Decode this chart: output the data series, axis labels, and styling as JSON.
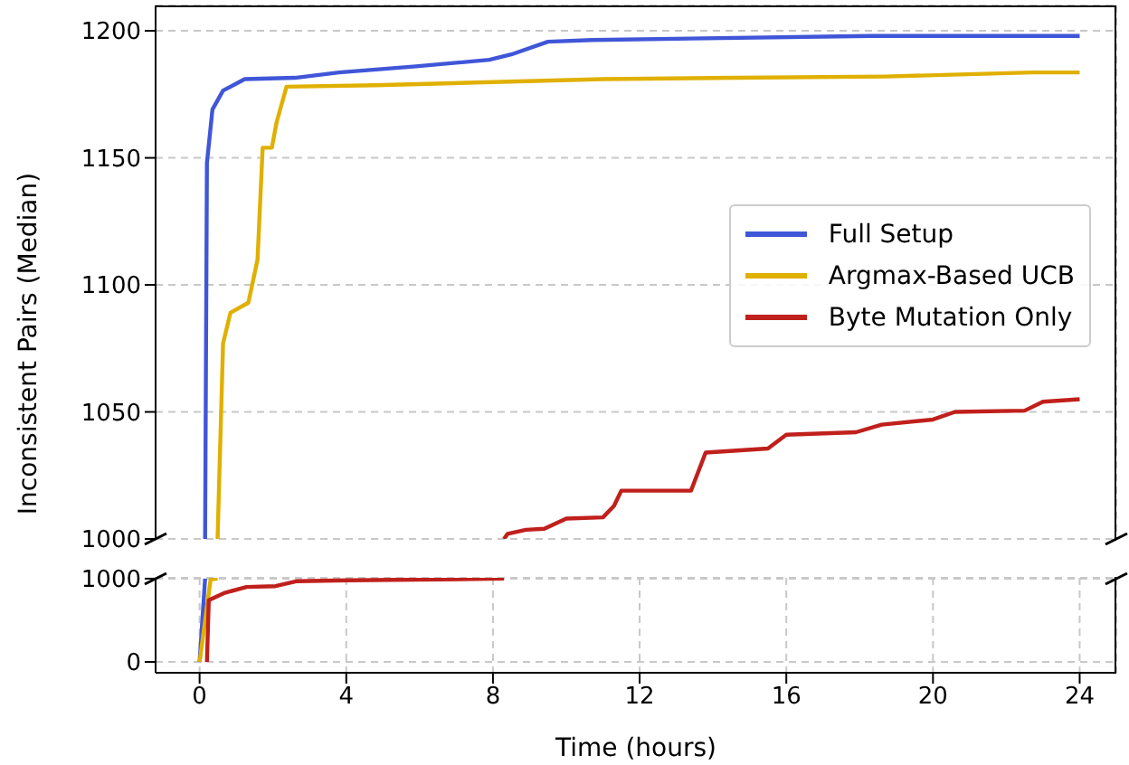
{
  "chart_data": [
    {
      "type": "line",
      "ylabel": "Inconsistent Pairs (Median)",
      "xlim": [
        -1.2,
        25
      ],
      "xticks": [
        0,
        4,
        8,
        12,
        16,
        20,
        24
      ],
      "ylim": [
        1000,
        1210
      ],
      "yticks": [
        1000,
        1050,
        1100,
        1150,
        1200
      ],
      "grid": true,
      "legend": "right",
      "tick_labels": "y",
      "line_style": "solid",
      "series": [
        {
          "name": "Full Setup",
          "color": "#4056d8",
          "x": [
            0.15,
            0.2,
            0.35,
            0.64,
            1.23,
            2.6,
            3.8,
            5.9,
            7.9,
            8.5,
            9.5,
            10.7,
            18.3,
            24
          ],
          "values": [
            1000,
            1148,
            1169,
            1176.5,
            1181,
            1181.5,
            1183.6,
            1186,
            1188.6,
            1190.7,
            1195.7,
            1196.4,
            1198,
            1198
          ]
        },
        {
          "name": "Argmax-Based UCB",
          "color": "#e0b000",
          "x": [
            0.49,
            0.64,
            0.84,
            1.33,
            1.58,
            1.72,
            1.97,
            2.1,
            2.37,
            4.8,
            11,
            14.6,
            18.7,
            22.7,
            24
          ],
          "values": [
            1000,
            1077,
            1089,
            1093,
            1110,
            1154,
            1154,
            1164,
            1178,
            1178.6,
            1181,
            1181.5,
            1182,
            1183.6,
            1183.6
          ]
        },
        {
          "name": "Byte Mutation Only",
          "color": "#c0201c",
          "x": [
            8.3,
            8.4,
            8.9,
            9.4,
            10,
            11,
            11.3,
            11.5,
            13.4,
            13.8,
            15.5,
            16,
            17.9,
            18.6,
            20,
            20.6,
            22.5,
            23,
            24
          ],
          "values": [
            1000,
            1002,
            1003.6,
            1004,
            1008,
            1008.5,
            1013,
            1019,
            1019,
            1034,
            1035.6,
            1041,
            1042,
            1045,
            1047,
            1050,
            1050.5,
            1054,
            1055
          ]
        }
      ]
    },
    {
      "type": "line",
      "xlabel": "Time (hours)",
      "xlim": [
        -1.2,
        25
      ],
      "xticks": [
        0,
        4,
        8,
        12,
        16,
        20,
        24
      ],
      "ylim": [
        -130,
        1010
      ],
      "yticks": [
        0,
        1000
      ],
      "grid": true,
      "line_style": "solid",
      "series": [
        {
          "color": "#4056d8",
          "x": [
            0,
            0.15
          ],
          "values": [
            0,
            1000
          ]
        },
        {
          "color": "#e0b000",
          "x": [
            0,
            0.3,
            0.49
          ],
          "values": [
            0,
            990,
            1000
          ]
        },
        {
          "color": "#c0201c",
          "x": [
            0.2,
            0.25,
            0.69,
            1.28,
            2.07,
            2.66,
            4.06,
            8.3
          ],
          "values": [
            0,
            740,
            830,
            900,
            910,
            970,
            980,
            1000
          ]
        }
      ]
    }
  ]
}
